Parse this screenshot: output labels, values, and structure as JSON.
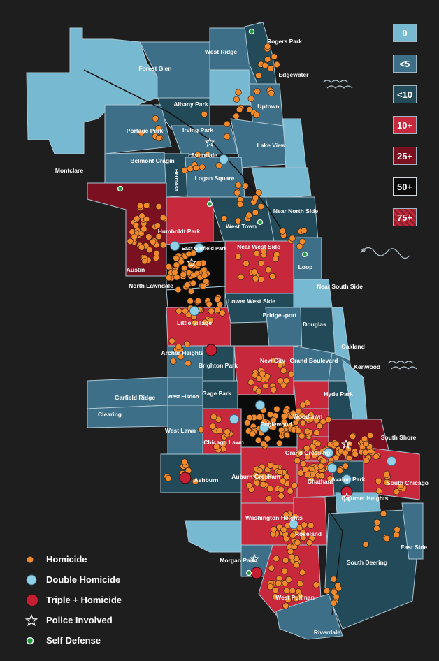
{
  "colors": {
    "background": "#1e1e1e",
    "zero": "#78b9d2",
    "lt5": "#3d7088",
    "lt10": "#234a58",
    "ten_plus": "#c8283c",
    "twentyfive_plus": "#7a1020",
    "fifty_plus": "#0b0b0b",
    "seventyfive_plus": "#b52336",
    "homicide_dot": "#f08a2c",
    "double_dot": "#8fd0e6",
    "triple_dot": "#c41e33",
    "self_defense_dot": "#1f9a3a"
  },
  "scale": [
    {
      "label": "0",
      "level": "zero"
    },
    {
      "label": "<5",
      "level": "lt5"
    },
    {
      "label": "<10",
      "level": "lt10"
    },
    {
      "label": "10+",
      "level": "ten_plus"
    },
    {
      "label": "25+",
      "level": "twentyfive_plus"
    },
    {
      "label": "50+",
      "level": "fifty_plus"
    },
    {
      "label": "75+",
      "level": "seventyfive_plus"
    }
  ],
  "legend": [
    {
      "label": "Homicide",
      "icon": "orange-dot-icon"
    },
    {
      "label": "Double Homicide",
      "icon": "blue-dot-icon"
    },
    {
      "label": "Triple + Homicide",
      "icon": "red-dot-icon"
    },
    {
      "label": "Police Involved",
      "icon": "star-icon"
    },
    {
      "label": "Self Defense",
      "icon": "green-dot-icon"
    }
  ],
  "neighborhoods": {
    "rogers_park": "Rogers Park",
    "west_ridge": "West Ridge",
    "edgewater": "Edgewater",
    "forest_glen": "Forest Glen",
    "albany_park": "Albany Park",
    "uptown": "Uptown",
    "portage_park": "Portage Park",
    "irving_park": "Irving Park",
    "lake_view": "Lake View",
    "avondale": "Avondale",
    "belmont_cragin": "Belmont Cragin",
    "montclare": "Montclare",
    "hermosa": "Hermosa",
    "logan_square": "Logan Square",
    "near_north_side": "Near North Side",
    "west_town": "West Town",
    "humboldt_park": "Humboldt Park",
    "east_garfield_park": "East Garfield Park",
    "near_west_side": "Near West Side",
    "austin": "Austin",
    "loop": "Loop",
    "north_lawndale": "North Lawndale",
    "near_south_side": "Near South Side",
    "lower_west_side": "Lower West Side",
    "little_village": "Little Village",
    "bridgeport": "Bridge -port",
    "douglas": "Douglas",
    "oakland": "Oakland",
    "archer_heights": "Archer Heights",
    "brighton_park": "Brighton Park",
    "new_city": "New City",
    "grand_boulevard": "Grand Boulevard",
    "kenwood": "Kenwood",
    "garfield_ridge": "Garfield Ridge",
    "west_elsdon": "West Elsdon",
    "gage_park": "Gage Park",
    "hyde_park": "Hyde Park",
    "clearing": "Clearing",
    "woodlawn": "Woodlawn",
    "englewood": "Englewood",
    "west_lawn": "West Lawn",
    "chicago_lawn": "Chicago Lawn",
    "south_shore": "South Shore",
    "greater_grand_crossing": "Grand Crossing",
    "auburn_gresham": "Auburn Gresham",
    "chatham": "Chatham",
    "avalon_park": "Avalon Park",
    "south_chicago": "South Chicago",
    "ashburn": "Ashburn",
    "calumet_heights": "Calumet Heights",
    "washington_heights": "Washington Heights",
    "roseland": "Roseland",
    "east_side": "East Side",
    "south_deering": "South Deering",
    "morgan_park": "Morgan Park",
    "west_pullman": "West Pullman",
    "riverdale": "Riverdale"
  }
}
